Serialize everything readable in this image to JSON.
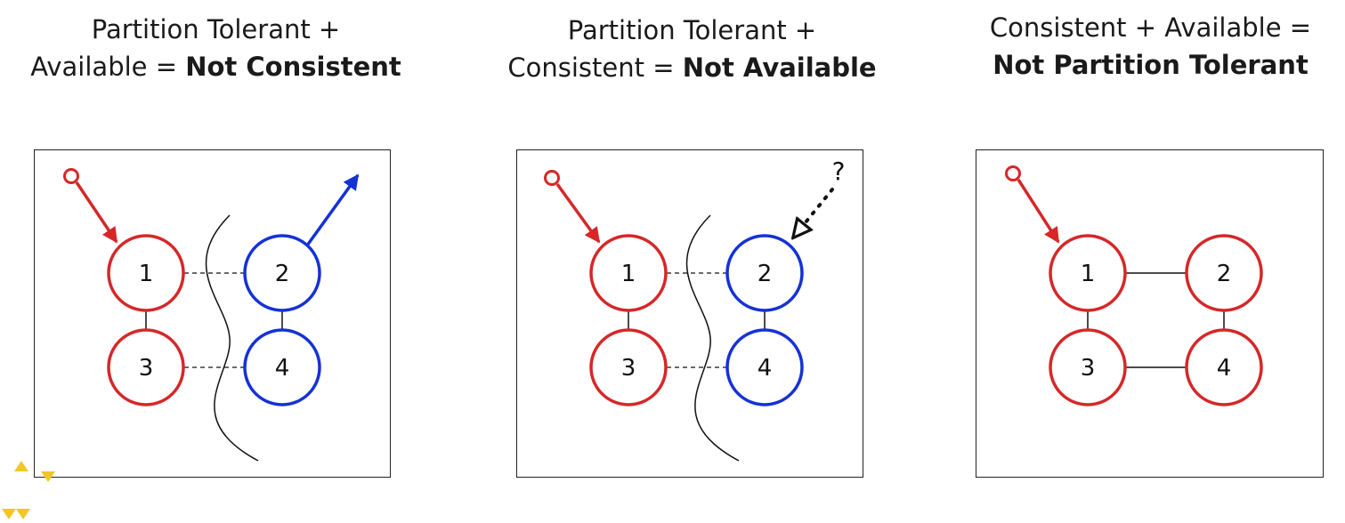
{
  "colors": {
    "side_a": "#d62728",
    "side_b": "#1432d6",
    "line": "#111111",
    "accent_marker": "#f3c623"
  },
  "panels": [
    {
      "title_line1": "Partition Tolerant +",
      "title_prefix": "Available = ",
      "title_bold": "Not Consistent",
      "nodes": [
        "1",
        "2",
        "3",
        "4"
      ]
    },
    {
      "title_line1": "Partition Tolerant +",
      "title_prefix": "Consistent = ",
      "title_bold": "Not Available",
      "nodes": [
        "1",
        "2",
        "3",
        "4"
      ],
      "question": "?"
    },
    {
      "title_line1": "Consistent + Available =",
      "title_prefix": "",
      "title_bold": "Not Partition Tolerant",
      "nodes": [
        "1",
        "2",
        "3",
        "4"
      ]
    }
  ]
}
